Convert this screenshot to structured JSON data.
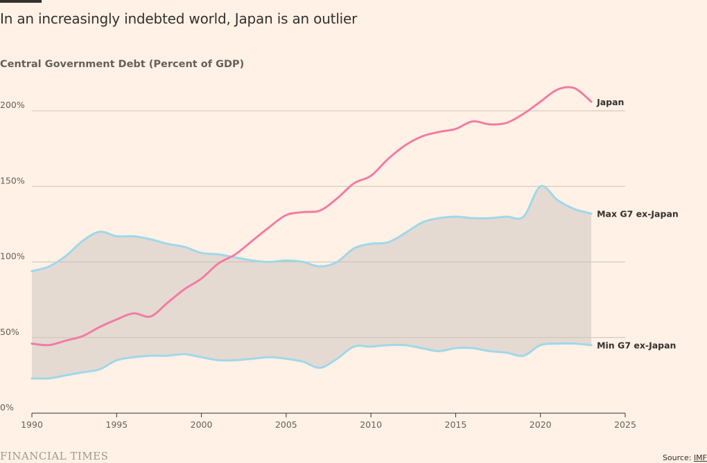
{
  "header": {
    "title": "In an increasingly indebted world, Japan is an outlier",
    "subtitle": "Central Government Debt (Percent of GDP)"
  },
  "footer": {
    "brand": "FINANCIAL TIMES",
    "source_prefix": "Source: ",
    "source_link": "IMF"
  },
  "colors": {
    "japan": "#f27ba5",
    "g7": "#9fd8ea",
    "band": "#e4dad1",
    "grid": "#ccc1b7",
    "axis": "#33302e",
    "text": "#33302e"
  },
  "chart_data": {
    "type": "line",
    "title": "In an increasingly indebted world, Japan is an outlier",
    "ylabel": "Central Government Debt (Percent of GDP)",
    "xlim": [
      1990,
      2025
    ],
    "ylim": [
      0,
      220
    ],
    "x_ticks": [
      "1990",
      "1995",
      "2000",
      "2005",
      "2010",
      "2015",
      "2020",
      "2025"
    ],
    "y_ticks": [
      {
        "value": 0,
        "label": "0%"
      },
      {
        "value": 50,
        "label": "50%"
      },
      {
        "value": 100,
        "label": "100%"
      },
      {
        "value": 150,
        "label": "150%"
      },
      {
        "value": 200,
        "label": "200%"
      }
    ],
    "grid": true,
    "legend": "direct labels at line ends",
    "x": [
      1990,
      1991,
      1992,
      1993,
      1994,
      1995,
      1996,
      1997,
      1998,
      1999,
      2000,
      2001,
      2002,
      2003,
      2004,
      2005,
      2006,
      2007,
      2008,
      2009,
      2010,
      2011,
      2012,
      2013,
      2014,
      2015,
      2016,
      2017,
      2018,
      2019,
      2020,
      2021,
      2022,
      2023
    ],
    "series": [
      {
        "name": "Japan",
        "values": [
          46,
          45,
          48,
          51,
          57,
          62,
          66,
          64,
          73,
          82,
          89,
          99,
          105,
          114,
          123,
          131,
          133,
          134,
          142,
          152,
          157,
          168,
          177,
          183,
          186,
          188,
          193,
          191,
          192,
          198,
          206,
          214,
          215,
          206
        ]
      },
      {
        "name": "Max G7 ex-Japan",
        "values": [
          94,
          97,
          104,
          114,
          120,
          117,
          117,
          115,
          112,
          110,
          106,
          105,
          103,
          101,
          100,
          101,
          100,
          97,
          100,
          109,
          112,
          113,
          119,
          126,
          129,
          130,
          129,
          129,
          130,
          130,
          150,
          141,
          135,
          132
        ]
      },
      {
        "name": "Min G7 ex-Japan",
        "values": [
          23,
          23,
          25,
          27,
          29,
          35,
          37,
          38,
          38,
          39,
          37,
          35,
          35,
          36,
          37,
          36,
          34,
          30,
          36,
          44,
          44,
          45,
          45,
          43,
          41,
          43,
          43,
          41,
          40,
          38,
          45,
          46,
          46,
          45
        ]
      }
    ],
    "band": {
      "between": [
        "Min G7 ex-Japan",
        "Max G7 ex-Japan"
      ]
    }
  }
}
